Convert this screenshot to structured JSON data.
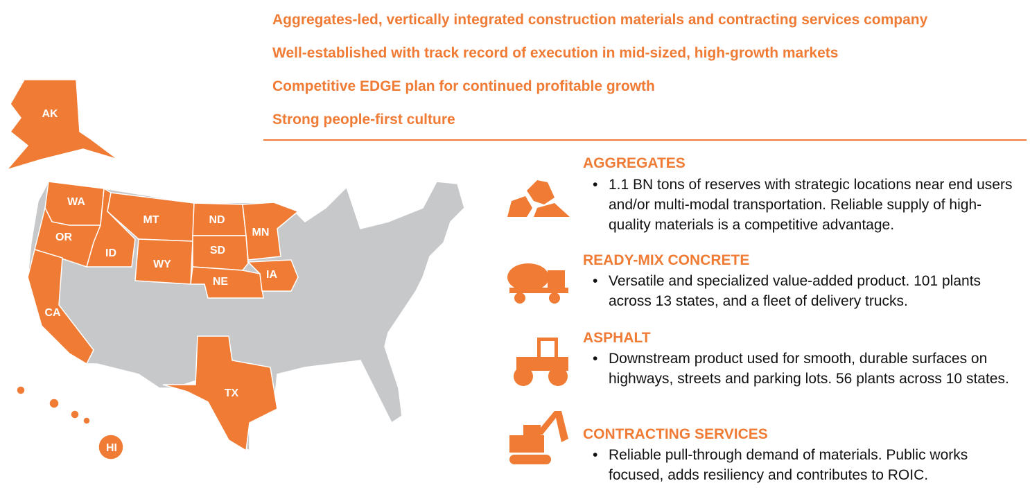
{
  "headlines": [
    "Aggregates-led, vertically integrated construction materials and contracting services company",
    "Well-established with track record of execution in mid-sized, high-growth markets",
    "Competitive EDGE plan for continued profitable growth",
    "Strong people-first culture"
  ],
  "map": {
    "states": [
      "AK",
      "WA",
      "OR",
      "CA",
      "ID",
      "MT",
      "WY",
      "ND",
      "SD",
      "NE",
      "MN",
      "IA",
      "TX",
      "HI"
    ]
  },
  "segments": [
    {
      "title": "AGGREGATES",
      "bullet": "1.1 BN tons of reserves with strategic locations near end users and/or multi-modal transportation. Reliable supply of high-quality materials is a competitive advantage."
    },
    {
      "title": "READY-MIX CONCRETE",
      "bullet": "Versatile and specialized value-added product. 101 plants across 13 states, and a fleet of delivery trucks."
    },
    {
      "title": "ASPHALT",
      "bullet": "Downstream product used for smooth, durable surfaces on highways, streets and parking lots. 56 plants across 10 states."
    },
    {
      "title": "CONTRACTING SERVICES",
      "bullet": "Reliable pull-through demand of materials. Public works focused, adds resiliency and contributes to ROIC."
    }
  ]
}
